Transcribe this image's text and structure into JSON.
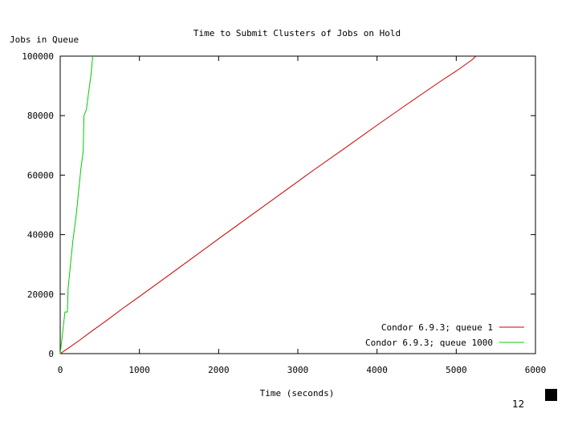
{
  "chart_data": {
    "type": "line",
    "title": "Time to Submit Clusters of Jobs on Hold",
    "xlabel": "Time (seconds)",
    "ylabel": "Jobs in Queue",
    "xlim": [
      0,
      6000
    ],
    "ylim": [
      0,
      100000
    ],
    "x_ticks": [
      0,
      1000,
      2000,
      3000,
      4000,
      5000,
      6000
    ],
    "y_ticks": [
      0,
      20000,
      40000,
      60000,
      80000,
      100000
    ],
    "x_tick_labels": [
      "0",
      "1000",
      "2000",
      "3000",
      "4000",
      "5000",
      "6000"
    ],
    "y_tick_labels": [
      "0",
      "20000",
      "40000",
      "60000",
      "80000",
      "100000"
    ],
    "grid": false,
    "legend_position": "bottom-right",
    "series": [
      {
        "name": "Condor 6.9.3; queue 1",
        "color": "#cc0000",
        "x": [
          0,
          100,
          250,
          400,
          600,
          800,
          1000,
          1300,
          1600,
          2000,
          2400,
          2800,
          3200,
          3600,
          4000,
          4400,
          4800,
          5000,
          5200,
          5250
        ],
        "y": [
          0,
          1800,
          4600,
          7600,
          11400,
          15400,
          19200,
          25000,
          30800,
          38600,
          46300,
          54000,
          61700,
          69200,
          76800,
          84200,
          91500,
          95000,
          98800,
          100000
        ]
      },
      {
        "name": "Condor 6.9.3; queue 1000",
        "color": "#00cc00",
        "x": [
          0,
          30,
          60,
          90,
          100,
          130,
          160,
          190,
          200,
          230,
          260,
          290,
          300,
          330,
          360,
          390,
          400,
          410
        ],
        "y": [
          0,
          7000,
          14000,
          14000,
          22000,
          30000,
          38000,
          44000,
          46000,
          54000,
          62000,
          68000,
          80000,
          82000,
          88000,
          94000,
          97000,
          100000
        ]
      }
    ]
  },
  "page": {
    "number": "12"
  }
}
